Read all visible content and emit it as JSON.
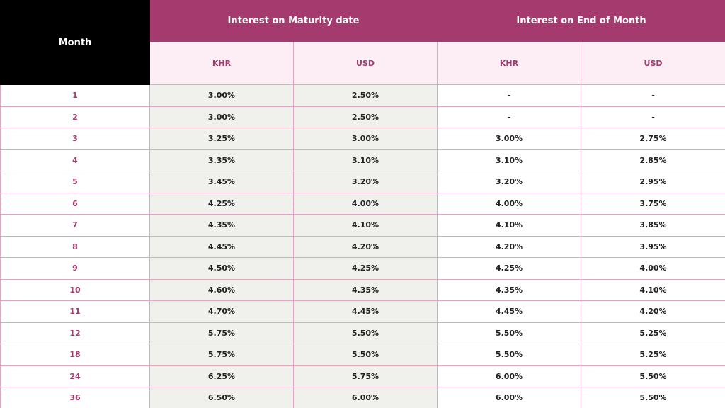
{
  "table": {
    "month_header": "Month",
    "group_headers": [
      "Interest on Maturity date",
      "Interest on End of Month"
    ],
    "sub_headers": [
      "KHR",
      "USD",
      "KHR",
      "USD"
    ],
    "rows": [
      [
        "1",
        "3.00%",
        "2.50%",
        "-",
        "-"
      ],
      [
        "2",
        "3.00%",
        "2.50%",
        "-",
        "-"
      ],
      [
        "3",
        "3.25%",
        "3.00%",
        "3.00%",
        "2.75%"
      ],
      [
        "4",
        "3.35%",
        "3.10%",
        "3.10%",
        "2.85%"
      ],
      [
        "5",
        "3.45%",
        "3.20%",
        "3.20%",
        "2.95%"
      ],
      [
        "6",
        "4.25%",
        "4.00%",
        "4.00%",
        "3.75%"
      ],
      [
        "7",
        "4.35%",
        "4.10%",
        "4.10%",
        "3.85%"
      ],
      [
        "8",
        "4.45%",
        "4.20%",
        "4.20%",
        "3.95%"
      ],
      [
        "9",
        "4.50%",
        "4.25%",
        "4.25%",
        "4.00%"
      ],
      [
        "10",
        "4.60%",
        "4.35%",
        "4.35%",
        "4.10%"
      ],
      [
        "11",
        "4.70%",
        "4.45%",
        "4.45%",
        "4.20%"
      ],
      [
        "12",
        "5.75%",
        "5.50%",
        "5.50%",
        "5.25%"
      ],
      [
        "18",
        "5.75%",
        "5.50%",
        "5.50%",
        "5.25%"
      ],
      [
        "24",
        "6.25%",
        "5.75%",
        "6.00%",
        "5.50%"
      ],
      [
        "36",
        "6.50%",
        "6.00%",
        "6.00%",
        "5.50%"
      ]
    ]
  }
}
